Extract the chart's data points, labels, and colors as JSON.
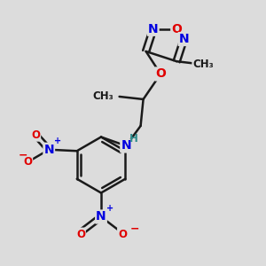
{
  "background_color": "#dcdcdc",
  "bond_color": "#1a1a1a",
  "bond_width": 1.8,
  "atom_colors": {
    "C": "#1a1a1a",
    "H": "#2e8b8b",
    "N": "#0000e0",
    "O": "#e00000"
  },
  "font_size_atom": 10,
  "font_size_small": 8.5,
  "fig_width": 3.0,
  "fig_height": 3.0,
  "dpi": 100
}
